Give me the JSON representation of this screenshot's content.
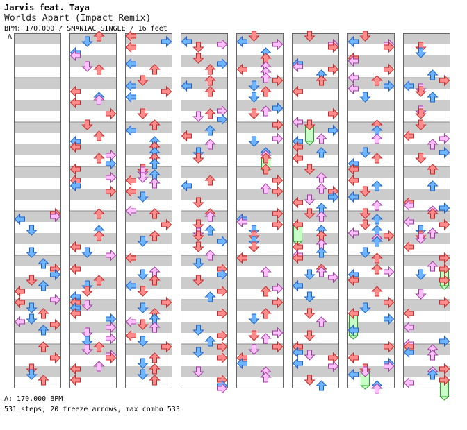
{
  "song": {
    "artist": "Jarvis feat. Taya",
    "title": "Worlds Apart (Impact Remix)",
    "meta": "BPM: 170.000 / SMANIAC SINGLE / 16 feet"
  },
  "segment_label": "A",
  "footer": {
    "bpm_line": "A: 170.000 BPM",
    "stats_line": "531 steps, 20 freeze arrows, max combo 533"
  },
  "colors": {
    "stripe_gray": "#cccccc",
    "stripe_white": "#ffffff",
    "column_border": "#666666",
    "quarter_red": "#ff8c8c",
    "quarter_red_stroke": "#c82828",
    "eighth_blue": "#6eb4ff",
    "eighth_blue_stroke": "#1e64c8",
    "sixteenth_pink": "#ffc0ff",
    "sixteenth_pink_stroke": "#a03ca0",
    "freeze_green": "#c8ffc8",
    "freeze_green_stroke": "#28a028"
  },
  "chart_data": {
    "type": "step-chart",
    "columns": 8,
    "measures_per_column": 8,
    "lanes": [
      "left",
      "down",
      "up",
      "right"
    ],
    "first_column_measures_with_notes": 4,
    "seed": 20170
  }
}
